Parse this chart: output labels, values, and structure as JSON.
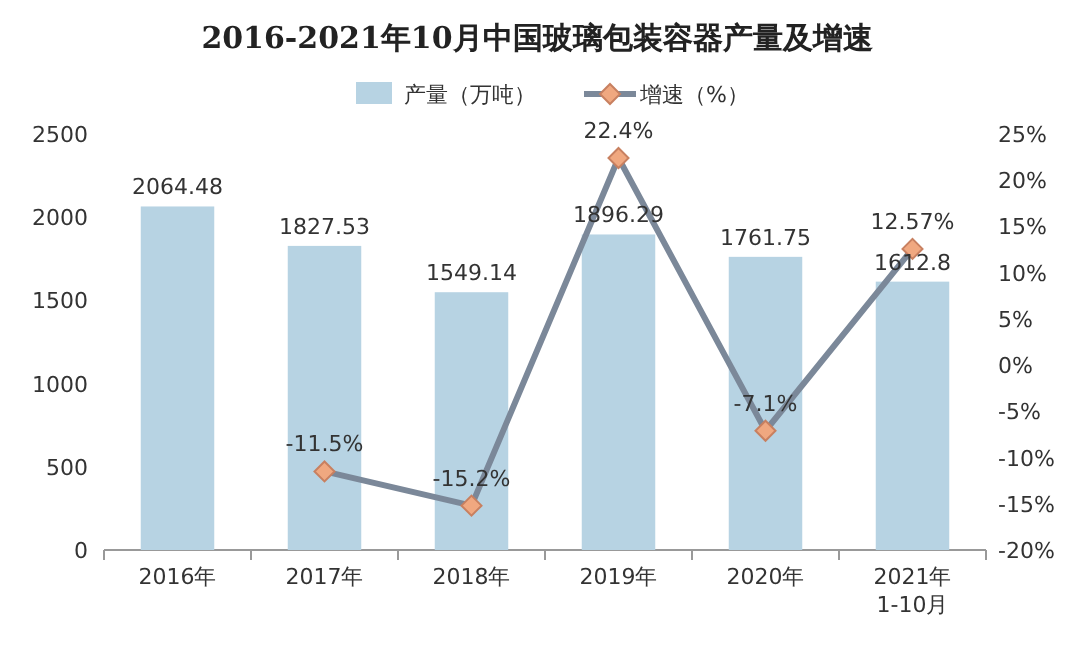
{
  "chart_data": {
    "type": "bar",
    "title": "2016-2021年10月中国玻璃包装容器产量及增速",
    "categories": [
      "2016年",
      "2017年",
      "2018年",
      "2019年",
      "2020年",
      "2021年\n1-10月"
    ],
    "series": [
      {
        "name": "产量（万吨）",
        "color": "#b7d3e3",
        "values": [
          2064.48,
          1827.53,
          1549.14,
          1896.29,
          1761.75,
          1612.8
        ],
        "value_labels": [
          "2064.48",
          "1827.53",
          "1549.14",
          "1896.29",
          "1761.75",
          "1612.8"
        ]
      },
      {
        "name": "增速（%）",
        "type": "line",
        "axis": "y2",
        "color": "#7b8899",
        "marker": "diamond",
        "values": [
          null,
          -11.5,
          -15.2,
          22.4,
          -7.1,
          12.57
        ],
        "value_labels": [
          null,
          "-11.5%",
          "-15.2%",
          "22.4%",
          "-7.1%",
          "12.57%"
        ]
      }
    ],
    "ylim": [
      0,
      2500
    ],
    "yticks": [
      0,
      500,
      1000,
      1500,
      2000,
      2500
    ],
    "y2lim": [
      -20,
      25
    ],
    "y2ticks": [
      {
        "value": -20,
        "label": "-20%"
      },
      {
        "value": -15,
        "label": "-15%"
      },
      {
        "value": -10,
        "label": "-10%"
      },
      {
        "value": -5,
        "label": "-5%"
      },
      {
        "value": 0,
        "label": "0%"
      },
      {
        "value": 5,
        "label": "5%"
      },
      {
        "value": 10,
        "label": "10%"
      },
      {
        "value": 15,
        "label": "15%"
      },
      {
        "value": 20,
        "label": "20%"
      },
      {
        "value": 25,
        "label": "25%"
      }
    ],
    "legend": "top",
    "grid": false
  }
}
